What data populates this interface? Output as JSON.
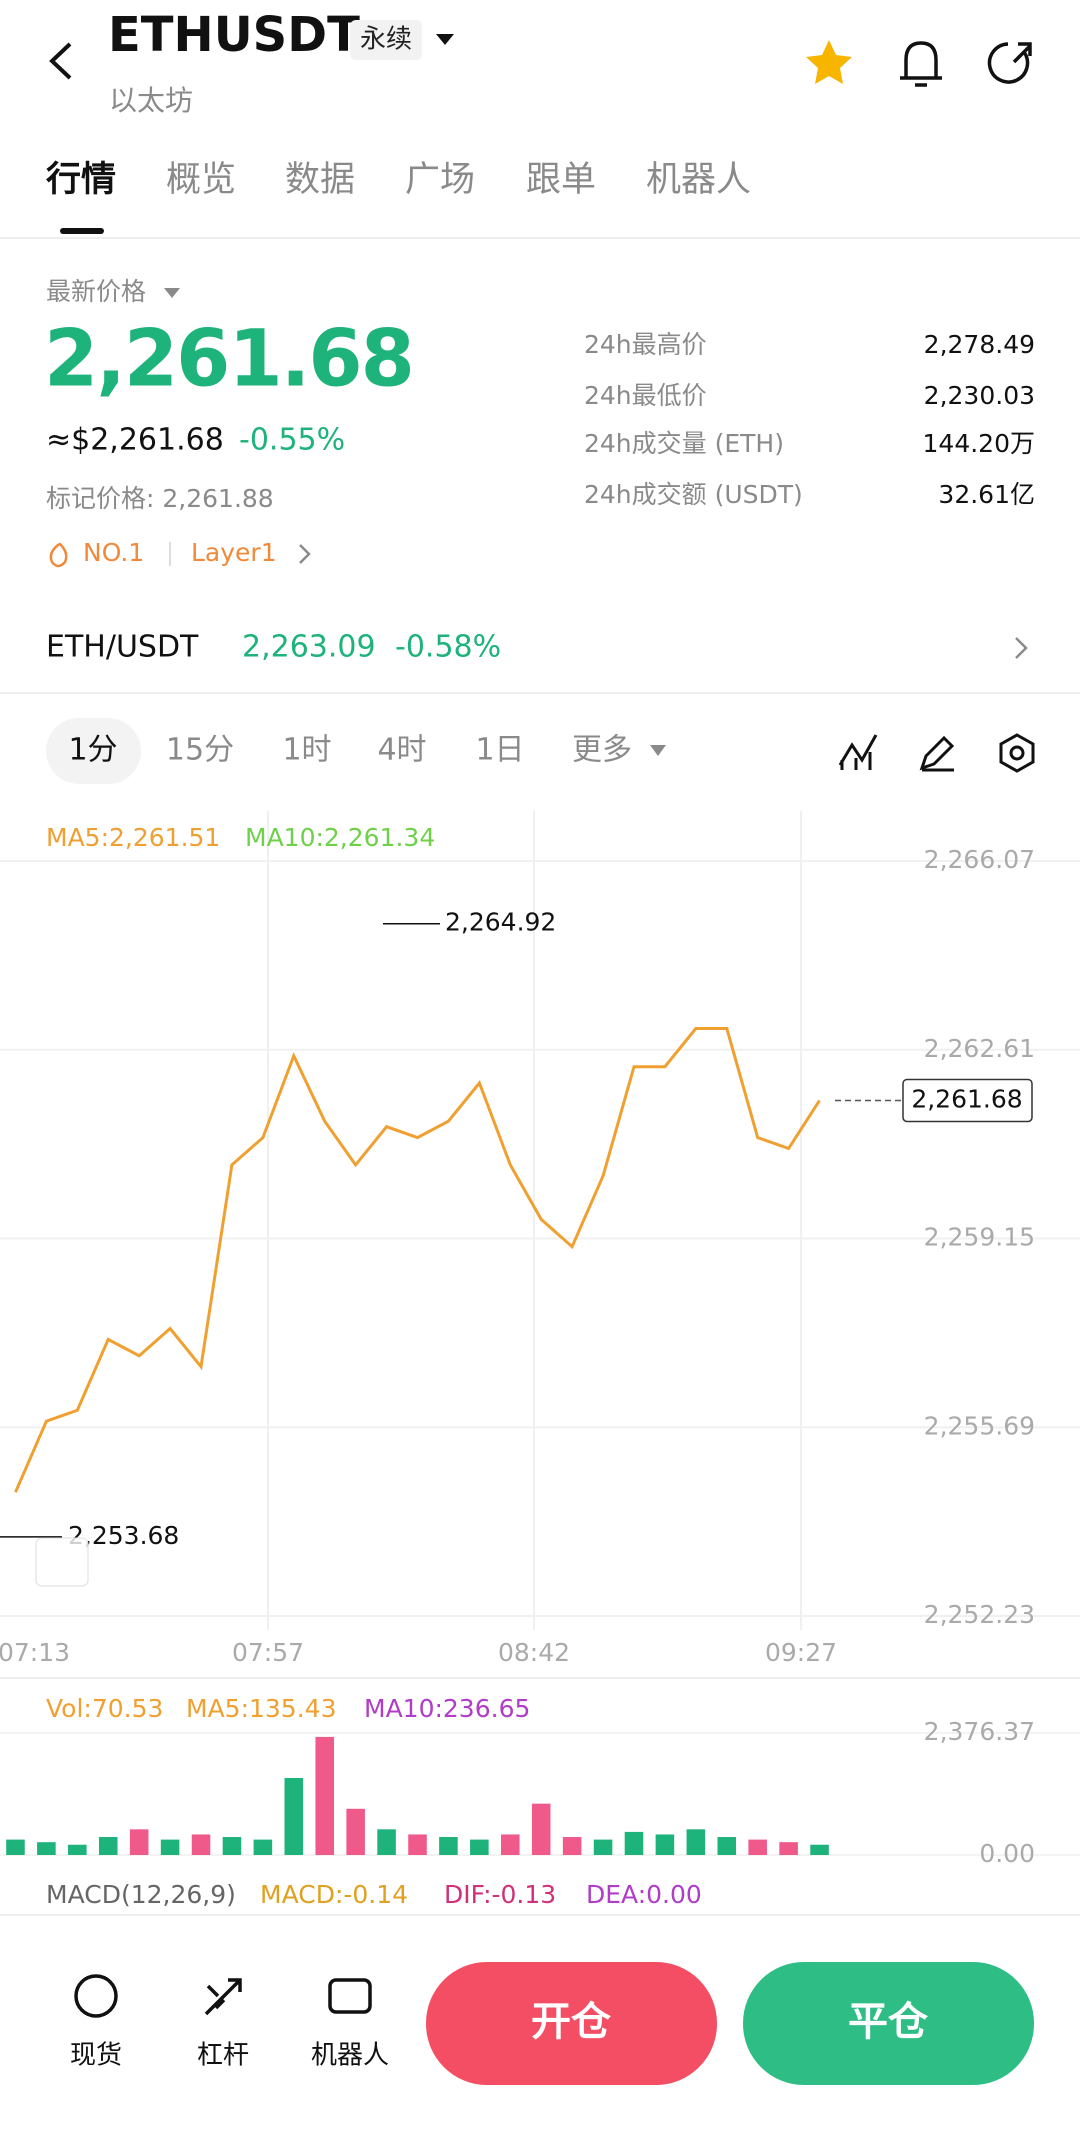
{
  "header": {
    "title": "ETHUSDT",
    "badge": "永续",
    "subtitle": "以太坊"
  },
  "tabs": [
    "行情",
    "概览",
    "数据",
    "广场",
    "跟单",
    "机器人"
  ],
  "price": {
    "label": "最新价格",
    "last": "2,261.68",
    "usd": "≈$2,261.68",
    "change": "-0.55%",
    "mark": "标记价格: 2,261.88",
    "tags": [
      "NO.1",
      "Layer1"
    ]
  },
  "stats": [
    {
      "label": "24h最高价",
      "value": "2,278.49"
    },
    {
      "label": "24h最低价",
      "value": "2,230.03"
    },
    {
      "label": "24h成交量 (ETH)",
      "value": "144.20万"
    },
    {
      "label": "24h成交额 (USDT)",
      "value": "32.61亿"
    }
  ],
  "spot": {
    "pair": "ETH/USDT",
    "price": "2,263.09",
    "change": "-0.58%"
  },
  "intervals": [
    "1分",
    "15分",
    "1时",
    "4时",
    "1日",
    "更多"
  ],
  "chart_data": {
    "type": "line",
    "legend": [
      "MA5:2,261.51",
      "MA10:2,261.34"
    ],
    "color": "#f0a030",
    "values": [
      2254.5,
      2255.8,
      2256.0,
      2257.3,
      2257.0,
      2257.5,
      2256.8,
      2260.5,
      2261.0,
      2262.5,
      2261.3,
      2260.5,
      2261.2,
      2261.0,
      2261.3,
      2262.0,
      2260.5,
      2259.5,
      2259.0,
      2260.3,
      2262.3,
      2262.3,
      2263.0,
      2263.0,
      2261.0,
      2260.8,
      2261.68
    ],
    "ylim": [
      2252.23,
      2266.07
    ],
    "yticks": [
      {
        "value": 2266.07,
        "label": "2,266.07"
      },
      {
        "value": 2262.61,
        "label": "2,262.61"
      },
      {
        "value": 2259.15,
        "label": "2,259.15"
      },
      {
        "value": 2255.69,
        "label": "2,255.69"
      },
      {
        "value": 2252.23,
        "label": "2,252.23"
      }
    ],
    "x_labels": [
      "07:13",
      "07:57",
      "08:42",
      "09:27"
    ],
    "grid": true,
    "high": {
      "value": 2264.92,
      "label": "2,264.92"
    },
    "low": {
      "value": 2253.68,
      "label": "2,253.68"
    },
    "last": {
      "value": 2261.68,
      "label": "2,261.68"
    }
  },
  "volume_chart": {
    "type": "bar",
    "legend": [
      "Vol:70.53",
      "MA5:135.43",
      "MA10:236.65"
    ],
    "values": [
      300,
      250,
      200,
      350,
      500,
      300,
      400,
      350,
      300,
      1500,
      2300,
      900,
      500,
      400,
      350,
      300,
      400,
      1000,
      350,
      300,
      450,
      400,
      500,
      350,
      300,
      250,
      200
    ],
    "ylim": [
      0,
      2376.37
    ],
    "yticks": [
      {
        "value": 2376.37,
        "label": "2,376.37"
      },
      {
        "value": 0,
        "label": "0.00"
      }
    ]
  },
  "macd": [
    "MACD(12,26,9)",
    "MACD:-0.14",
    "DIF:-0.13",
    "DEA:0.00"
  ],
  "bottom": {
    "nav": [
      "现货",
      "杠杆",
      "机器人"
    ],
    "buttons": [
      "开仓",
      "平仓"
    ]
  }
}
